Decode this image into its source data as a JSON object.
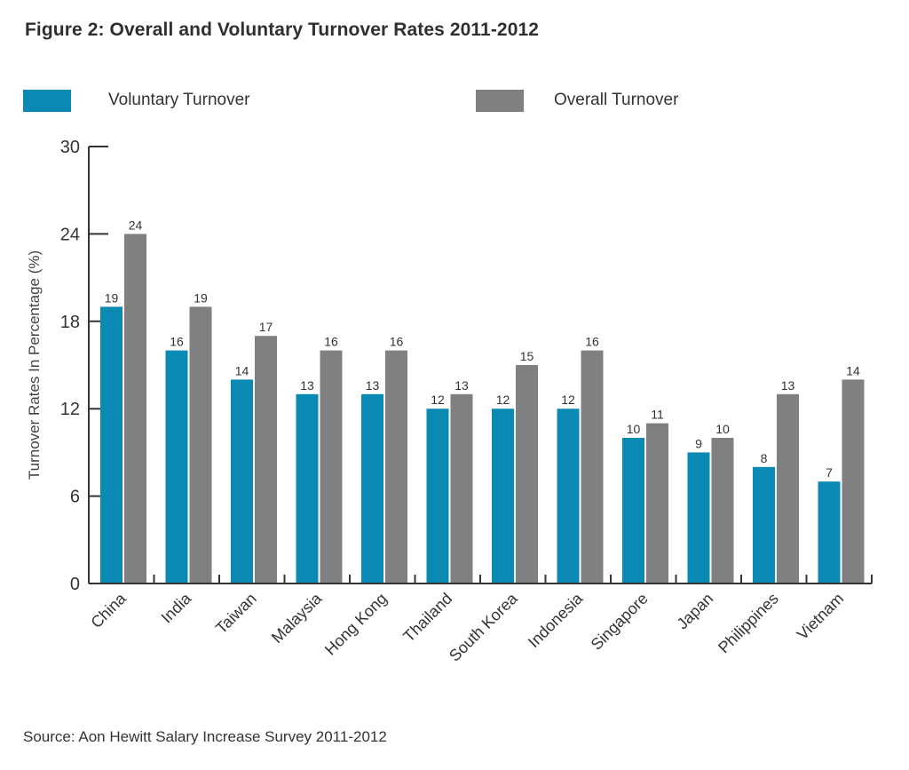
{
  "title": "Figure 2: Overall and Voluntary Turnover Rates 2011-2012",
  "source": "Source: Aon Hewitt Salary Increase Survey 2011-2012",
  "colors": {
    "voluntary": "#0a8ab3",
    "overall": "#808083",
    "axis": "#333333"
  },
  "legend": [
    {
      "label": "Voluntary Turnover",
      "color": "#0a8ab3"
    },
    {
      "label": "Overall Turnover",
      "color": "#808083"
    }
  ],
  "chart_data": {
    "type": "bar",
    "title": "Figure 2: Overall and Voluntary Turnover Rates 2011-2012",
    "xlabel": "",
    "ylabel": "Turnover Rates In Percentage (%)",
    "ylim": [
      0,
      30
    ],
    "yticks": [
      0,
      6,
      12,
      18,
      24,
      30
    ],
    "grid": false,
    "legend_position": "top",
    "categories": [
      "China",
      "India",
      "Taiwan",
      "Malaysia",
      "Hong Kong",
      "Thailand",
      "South Korea",
      "Indonesia",
      "Singapore",
      "Japan",
      "Philippines",
      "Vietnam"
    ],
    "series": [
      {
        "name": "Voluntary Turnover",
        "color": "#0a8ab3",
        "values": [
          19,
          16,
          14,
          13,
          13,
          12,
          12,
          12,
          10,
          9,
          8,
          7
        ]
      },
      {
        "name": "Overall Turnover",
        "color": "#808083",
        "values": [
          24,
          19,
          17,
          16,
          16,
          13,
          15,
          16,
          11,
          10,
          13,
          14
        ]
      }
    ],
    "data_labels": true
  }
}
